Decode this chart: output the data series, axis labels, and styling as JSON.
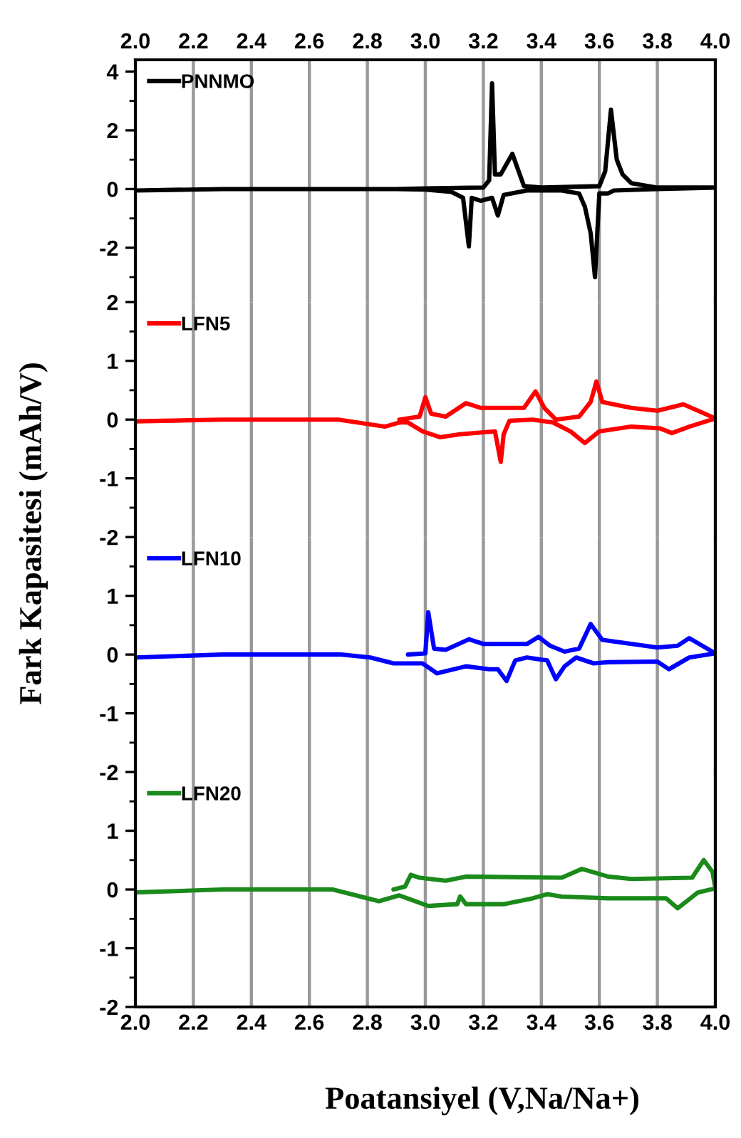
{
  "chart_data": [
    {
      "type": "line",
      "ylabel": "Fark Kapasitesi (mAh/V)",
      "xlim": [
        2.0,
        4.0
      ],
      "xticks": [
        2.0,
        2.2,
        2.4,
        2.6,
        2.8,
        3.0,
        3.2,
        3.4,
        3.6,
        3.8,
        4.0
      ],
      "x2lim": [
        2.0,
        4.0
      ],
      "x2ticks": [
        {
          "value": 2.0,
          "label": "2.0"
        },
        2.2,
        2.4,
        2.6,
        2.8,
        {
          "value": 3.0,
          "label": "3.0"
        },
        3.2,
        3.4,
        3.6,
        3.8,
        {
          "value": 4.0,
          "label": "4.0"
        }
      ],
      "ylim": [
        -3.85,
        4.4
      ],
      "yticks": [
        4,
        {
          "value": 3,
          "label": null
        },
        2,
        {
          "value": 1,
          "label": null
        },
        0,
        {
          "value": -1,
          "label": null
        },
        -2,
        {
          "value": -3,
          "label": null
        }
      ],
      "tick_labels": "y",
      "grid": "x",
      "legend": "top left",
      "series": [
        {
          "name": "PNNMO",
          "color": "#000000",
          "x": [
            2.9,
            3.0,
            3.2,
            3.22,
            3.23,
            3.24,
            3.26,
            3.3,
            3.34,
            3.4,
            3.6,
            3.62,
            3.64,
            3.66,
            3.68,
            3.71,
            3.8,
            4.0,
            3.8,
            3.65,
            3.63,
            3.6,
            3.585,
            3.57,
            3.55,
            3.53,
            3.47,
            3.35,
            3.27,
            3.25,
            3.23,
            3.19,
            3.16,
            3.15,
            3.13,
            3.09,
            3.0,
            2.9,
            2.3,
            2.0
          ],
          "values": [
            0,
            0.02,
            0.05,
            0.3,
            3.6,
            0.5,
            0.5,
            1.2,
            0.1,
            0.05,
            0.1,
            0.6,
            2.7,
            1.0,
            0.5,
            0.2,
            0.05,
            0.05,
            0,
            -0.05,
            -0.15,
            -0.15,
            -3.0,
            -1.5,
            -0.6,
            -0.15,
            -0.05,
            -0.05,
            -0.2,
            -0.9,
            -0.3,
            -0.4,
            -0.3,
            -1.95,
            -0.3,
            -0.1,
            -0.02,
            0,
            0,
            -0.05
          ]
        }
      ]
    },
    {
      "type": "line",
      "xlim": [
        2.0,
        4.0
      ],
      "xticks": [
        2.0,
        2.2,
        2.4,
        2.6,
        2.8,
        3.0,
        3.2,
        3.4,
        3.6,
        3.8,
        4.0
      ],
      "ylim": [
        -2,
        2
      ],
      "yticks": [
        2,
        {
          "value": 1.5,
          "label": null
        },
        1,
        {
          "value": 0.5,
          "label": null
        },
        0,
        {
          "value": -0.5,
          "label": null
        },
        -1,
        {
          "value": -1.5,
          "label": null
        },
        -2
      ],
      "tick_labels": "y",
      "grid": "x",
      "legend": "top left",
      "series": [
        {
          "name": "LFN5",
          "color": "#ff0000",
          "x": [
            2.91,
            2.98,
            3.0,
            3.02,
            3.07,
            3.14,
            3.19,
            3.34,
            3.38,
            3.41,
            3.45,
            3.53,
            3.57,
            3.59,
            3.61,
            3.71,
            3.8,
            3.84,
            3.89,
            3.94,
            4.0,
            3.91,
            3.85,
            3.81,
            3.71,
            3.6,
            3.55,
            3.5,
            3.44,
            3.37,
            3.29,
            3.27,
            3.26,
            3.24,
            3.12,
            3.05,
            2.99,
            2.94,
            2.91,
            2.86,
            2.7,
            2.3,
            2.0
          ],
          "values": [
            0,
            0.05,
            0.38,
            0.1,
            0.05,
            0.28,
            0.2,
            0.2,
            0.48,
            0.2,
            0,
            0.05,
            0.3,
            0.65,
            0.3,
            0.2,
            0.15,
            0.2,
            0.26,
            0.15,
            0.02,
            -0.12,
            -0.23,
            -0.15,
            -0.12,
            -0.2,
            -0.4,
            -0.2,
            -0.05,
            0,
            -0.02,
            -0.25,
            -0.72,
            -0.2,
            -0.25,
            -0.3,
            -0.2,
            -0.05,
            -0.05,
            -0.12,
            0,
            0,
            -0.03
          ]
        }
      ]
    },
    {
      "type": "line",
      "xlim": [
        2.0,
        4.0
      ],
      "xticks": [
        2.0,
        2.2,
        2.4,
        2.6,
        2.8,
        3.0,
        3.2,
        3.4,
        3.6,
        3.8,
        4.0
      ],
      "ylim": [
        -2,
        2
      ],
      "yticks": [
        {
          "value": 1.5,
          "label": null
        },
        1,
        {
          "value": 0.5,
          "label": null
        },
        0,
        {
          "value": -0.5,
          "label": null
        },
        -1,
        {
          "value": -1.5,
          "label": null
        },
        -2
      ],
      "tick_labels": "y",
      "grid": "x",
      "legend": "top left",
      "series": [
        {
          "name": "LFN10",
          "color": "#0000ff",
          "x": [
            2.94,
            3.0,
            3.01,
            3.03,
            3.07,
            3.15,
            3.2,
            3.35,
            3.39,
            3.43,
            3.48,
            3.53,
            3.57,
            3.61,
            3.8,
            3.87,
            3.91,
            4.0,
            3.91,
            3.84,
            3.8,
            3.63,
            3.58,
            3.52,
            3.48,
            3.45,
            3.42,
            3.35,
            3.31,
            3.28,
            3.25,
            3.22,
            3.14,
            3.04,
            2.99,
            2.89,
            2.81,
            2.71,
            2.3,
            2.0
          ],
          "values": [
            0,
            0.02,
            0.72,
            0.1,
            0.08,
            0.26,
            0.18,
            0.18,
            0.3,
            0.15,
            0.05,
            0.1,
            0.52,
            0.25,
            0.12,
            0.15,
            0.28,
            0.02,
            -0.05,
            -0.25,
            -0.12,
            -0.13,
            -0.15,
            -0.05,
            -0.2,
            -0.42,
            -0.1,
            -0.05,
            -0.1,
            -0.45,
            -0.25,
            -0.25,
            -0.2,
            -0.32,
            -0.15,
            -0.15,
            -0.05,
            0,
            0,
            -0.05
          ]
        }
      ]
    },
    {
      "type": "line",
      "xlabel": "Poatansiyel (V,Na/Na+)",
      "xlim": [
        2.0,
        4.0
      ],
      "xticks": [
        {
          "value": 2.0,
          "label": "2.0"
        },
        2.2,
        2.4,
        2.6,
        2.8,
        {
          "value": 3.0,
          "label": "3.0"
        },
        3.2,
        3.4,
        3.6,
        3.8,
        {
          "value": 4.0,
          "label": "4.0"
        }
      ],
      "ylim": [
        -2,
        2
      ],
      "yticks": [
        {
          "value": 1.5,
          "label": null
        },
        1,
        {
          "value": 0.5,
          "label": null
        },
        0,
        {
          "value": -0.5,
          "label": null
        },
        -1,
        {
          "value": -1.5,
          "label": null
        },
        -2
      ],
      "grid": "x",
      "legend": "top left",
      "series": [
        {
          "name": "LFN20",
          "color": "#1a8a1a",
          "x": [
            2.89,
            2.93,
            2.95,
            2.98,
            3.07,
            3.14,
            3.47,
            3.54,
            3.63,
            3.71,
            3.92,
            3.96,
            3.99,
            4.0,
            3.94,
            3.87,
            3.83,
            3.63,
            3.47,
            3.42,
            3.37,
            3.27,
            3.14,
            3.12,
            3.11,
            3.01,
            2.91,
            2.84,
            2.76,
            2.68,
            2.3,
            2.0
          ],
          "values": [
            0,
            0.05,
            0.25,
            0.2,
            0.15,
            0.22,
            0.2,
            0.35,
            0.22,
            0.18,
            0.2,
            0.5,
            0.3,
            0.02,
            -0.05,
            -0.32,
            -0.15,
            -0.15,
            -0.12,
            -0.08,
            -0.15,
            -0.25,
            -0.25,
            -0.12,
            -0.25,
            -0.28,
            -0.1,
            -0.2,
            -0.1,
            0,
            0,
            -0.05
          ]
        }
      ]
    }
  ]
}
